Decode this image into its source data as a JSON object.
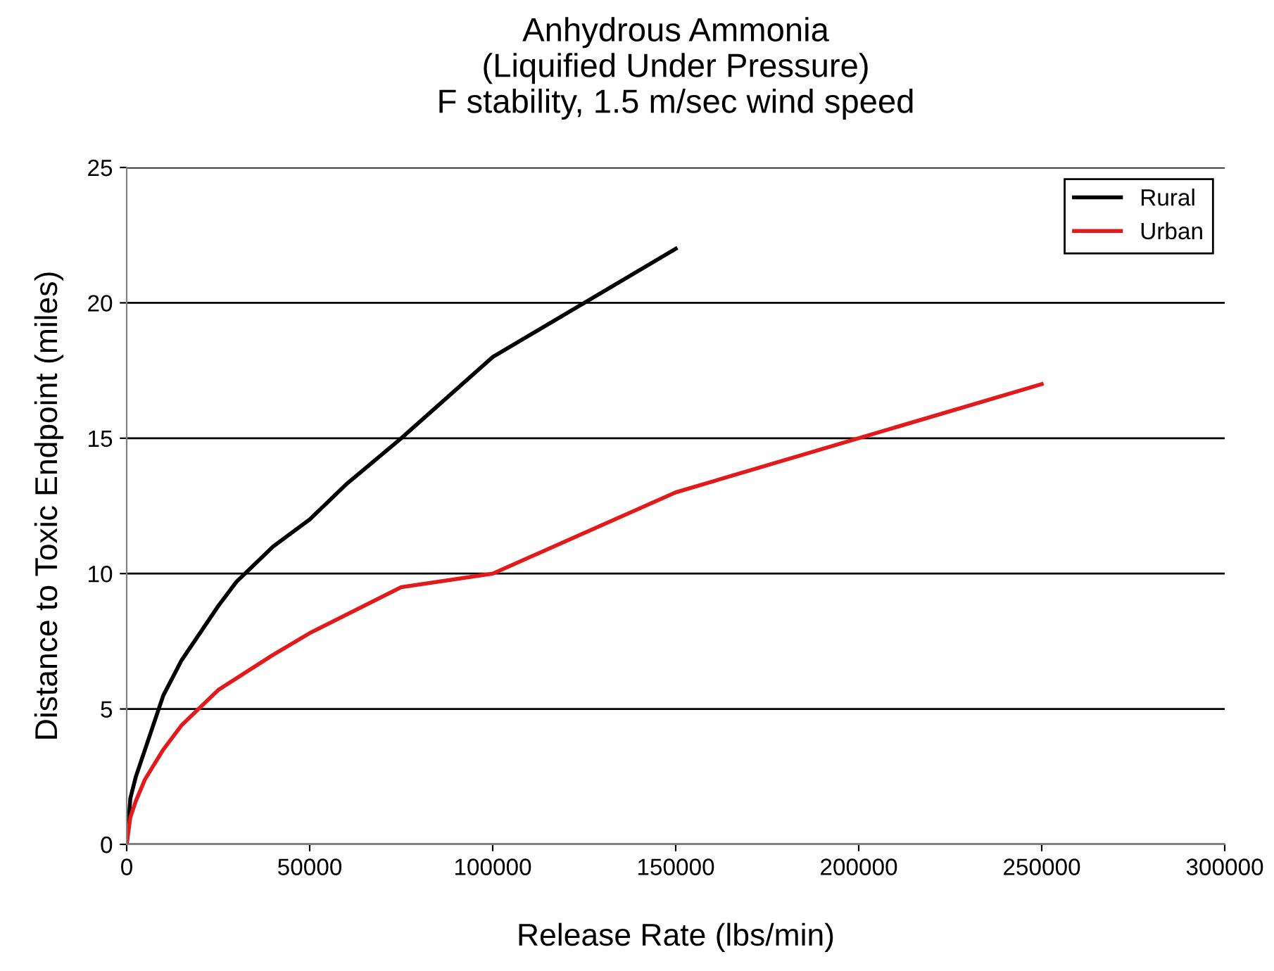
{
  "chart_data": {
    "type": "line",
    "title": "Anhydrous Ammonia\n(Liquified Under Pressure)\nF stability, 1.5 m/sec wind speed",
    "xlabel": "Release Rate (lbs/min)",
    "ylabel": "Distance to Toxic Endpoint (miles)",
    "series": [
      {
        "name": "Rural",
        "color": "#000000",
        "x": [
          0,
          1000,
          2500,
          5000,
          10000,
          15000,
          20000,
          25000,
          30000,
          40000,
          50000,
          60000,
          75000,
          100000,
          150000
        ],
        "values": [
          0,
          1.7,
          2.5,
          3.5,
          5.5,
          6.8,
          7.8,
          8.8,
          9.7,
          11,
          12,
          13.3,
          15,
          18,
          22
        ]
      },
      {
        "name": "Urban",
        "color": "#e31a1c",
        "x": [
          0,
          1000,
          2500,
          5000,
          10000,
          15000,
          25000,
          40000,
          50000,
          75000,
          100000,
          150000,
          250000
        ],
        "values": [
          0,
          1,
          1.6,
          2.4,
          3.5,
          4.4,
          5.7,
          7,
          7.8,
          9.5,
          10,
          13,
          17
        ]
      }
    ],
    "xlim": [
      0,
      300000
    ],
    "ylim": [
      0,
      25
    ],
    "xticks": [
      0,
      50000,
      100000,
      150000,
      200000,
      250000,
      300000
    ],
    "yticks": [
      0,
      5,
      10,
      15,
      20,
      25
    ],
    "grid": "y",
    "legend": "top right",
    "marker": "none",
    "line_style": "solid"
  }
}
